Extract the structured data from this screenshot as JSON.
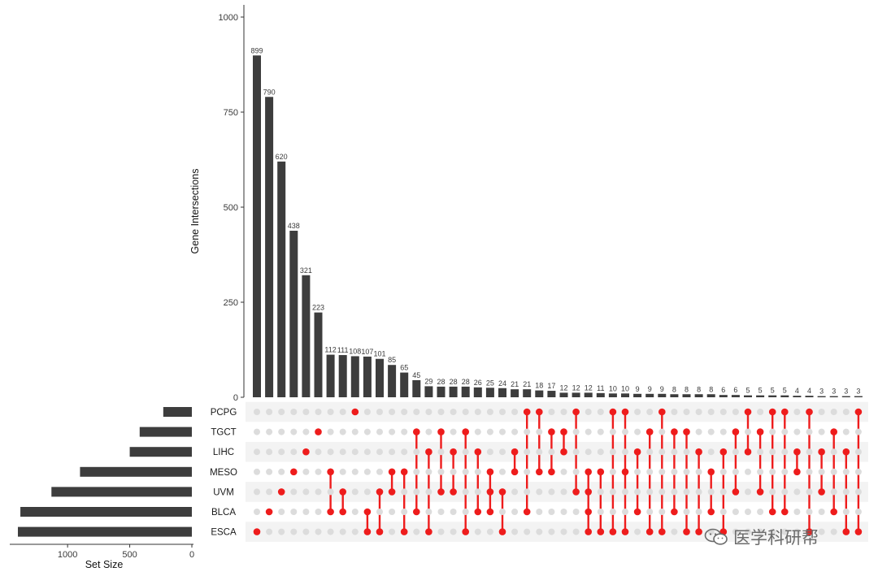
{
  "chart_data": {
    "type": "upset",
    "ylabel": "Gene Intersections",
    "xlabel": "Set Size",
    "ylim": [
      0,
      1000
    ],
    "yticks": [
      0,
      250,
      500,
      750,
      1000
    ],
    "set_size_ticks": [
      1000,
      500,
      0
    ],
    "set_size_lim": [
      0,
      1400
    ],
    "sets": [
      {
        "name": "PCPG",
        "size": 230
      },
      {
        "name": "TGCT",
        "size": 420
      },
      {
        "name": "LIHC",
        "size": 500
      },
      {
        "name": "MESO",
        "size": 900
      },
      {
        "name": "UVM",
        "size": 1130
      },
      {
        "name": "BLCA",
        "size": 1380
      },
      {
        "name": "ESCA",
        "size": 1400
      }
    ],
    "intersections": [
      {
        "value": 899,
        "label": "899",
        "sets": [
          "ESCA"
        ]
      },
      {
        "value": 790,
        "label": "790",
        "sets": [
          "BLCA"
        ]
      },
      {
        "value": 620,
        "label": "620",
        "sets": [
          "UVM"
        ]
      },
      {
        "value": 438,
        "label": "438",
        "sets": [
          "MESO"
        ]
      },
      {
        "value": 321,
        "label": "321",
        "sets": [
          "LIHC"
        ]
      },
      {
        "value": 223,
        "label": "223",
        "sets": [
          "TGCT"
        ]
      },
      {
        "value": 112,
        "label": "112",
        "sets": [
          "MESO",
          "BLCA"
        ]
      },
      {
        "value": 111,
        "label": "111",
        "sets": [
          "UVM",
          "BLCA"
        ]
      },
      {
        "value": 108,
        "label": "108",
        "sets": [
          "PCPG"
        ]
      },
      {
        "value": 107,
        "label": "107",
        "sets": [
          "BLCA",
          "ESCA"
        ]
      },
      {
        "value": 101,
        "label": "101",
        "sets": [
          "UVM",
          "ESCA"
        ]
      },
      {
        "value": 85,
        "label": "85",
        "sets": [
          "MESO",
          "UVM"
        ]
      },
      {
        "value": 65,
        "label": "65",
        "sets": [
          "MESO",
          "ESCA"
        ]
      },
      {
        "value": 45,
        "label": "45",
        "sets": [
          "TGCT",
          "BLCA"
        ]
      },
      {
        "value": 29,
        "label": "29",
        "sets": [
          "LIHC",
          "ESCA"
        ]
      },
      {
        "value": 28,
        "label": "28",
        "sets": [
          "TGCT",
          "UVM"
        ]
      },
      {
        "value": 28,
        "label": "28",
        "sets": [
          "LIHC",
          "UVM"
        ]
      },
      {
        "value": 28,
        "label": "28",
        "sets": [
          "TGCT",
          "ESCA"
        ]
      },
      {
        "value": 26,
        "label": "26",
        "sets": [
          "LIHC",
          "BLCA"
        ]
      },
      {
        "value": 25,
        "label": "25",
        "sets": [
          "MESO",
          "BLCA",
          "UVM"
        ]
      },
      {
        "value": 24,
        "label": "24",
        "sets": [
          "UVM",
          "ESCA"
        ]
      },
      {
        "value": 21,
        "label": "21",
        "sets": [
          "LIHC",
          "MESO"
        ]
      },
      {
        "value": 21,
        "label": "21",
        "sets": [
          "PCPG",
          "BLCA"
        ]
      },
      {
        "value": 18,
        "label": "18",
        "sets": [
          "PCPG",
          "MESO"
        ]
      },
      {
        "value": 17,
        "label": "17",
        "sets": [
          "TGCT",
          "MESO"
        ]
      },
      {
        "value": 12,
        "label": "12",
        "sets": [
          "TGCT",
          "LIHC"
        ]
      },
      {
        "value": 12,
        "label": "12",
        "sets": [
          "PCPG",
          "UVM"
        ]
      },
      {
        "value": 12,
        "label": "12",
        "sets": [
          "MESO",
          "UVM",
          "BLCA",
          "ESCA"
        ]
      },
      {
        "value": 11,
        "label": "11",
        "sets": [
          "MESO",
          "ESCA"
        ]
      },
      {
        "value": 10,
        "label": "10",
        "sets": [
          "PCPG",
          "ESCA"
        ]
      },
      {
        "value": 10,
        "label": "10",
        "sets": [
          "PCPG",
          "MESO",
          "ESCA"
        ]
      },
      {
        "value": 9,
        "label": "9",
        "sets": [
          "LIHC",
          "BLCA"
        ]
      },
      {
        "value": 9,
        "label": "9",
        "sets": [
          "TGCT",
          "ESCA"
        ]
      },
      {
        "value": 9,
        "label": "9",
        "sets": [
          "PCPG",
          "ESCA"
        ]
      },
      {
        "value": 8,
        "label": "8",
        "sets": [
          "TGCT",
          "BLCA"
        ]
      },
      {
        "value": 8,
        "label": "8",
        "sets": [
          "TGCT",
          "ESCA"
        ]
      },
      {
        "value": 8,
        "label": "8",
        "sets": [
          "LIHC",
          "ESCA"
        ]
      },
      {
        "value": 8,
        "label": "8",
        "sets": [
          "MESO",
          "BLCA"
        ]
      },
      {
        "value": 6,
        "label": "6",
        "sets": [
          "LIHC",
          "ESCA"
        ]
      },
      {
        "value": 6,
        "label": "6",
        "sets": [
          "TGCT",
          "UVM"
        ]
      },
      {
        "value": 5,
        "label": "5",
        "sets": [
          "PCPG",
          "LIHC"
        ]
      },
      {
        "value": 5,
        "label": "5",
        "sets": [
          "TGCT",
          "UVM"
        ]
      },
      {
        "value": 5,
        "label": "5",
        "sets": [
          "PCPG",
          "BLCA"
        ]
      },
      {
        "value": 5,
        "label": "5",
        "sets": [
          "PCPG",
          "BLCA"
        ]
      },
      {
        "value": 4,
        "label": "4",
        "sets": [
          "LIHC",
          "MESO"
        ]
      },
      {
        "value": 4,
        "label": "4",
        "sets": [
          "PCPG",
          "ESCA"
        ]
      },
      {
        "value": 3,
        "label": "3",
        "sets": [
          "LIHC",
          "UVM"
        ]
      },
      {
        "value": 3,
        "label": "3",
        "sets": [
          "TGCT",
          "BLCA"
        ]
      },
      {
        "value": 3,
        "label": "3",
        "sets": [
          "LIHC",
          "ESCA"
        ]
      },
      {
        "value": 3,
        "label": "3",
        "sets": [
          "PCPG",
          "ESCA"
        ]
      }
    ],
    "colors": {
      "bar": "#3d3d3d",
      "dot_active": "#ee1c1c",
      "dot_inactive": "#dcdcdc",
      "stripe": "#f3f3f3",
      "axis": "#333333"
    }
  },
  "watermark": {
    "text": "医学科研帮",
    "icon": "wechat-icon"
  }
}
